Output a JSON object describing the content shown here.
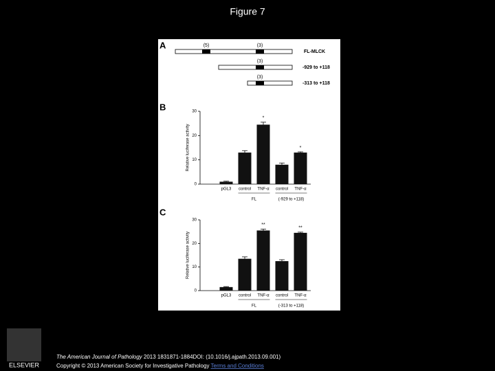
{
  "title": "Figure 7",
  "panel_labels": [
    "A",
    "B",
    "C"
  ],
  "diagram": {
    "constructs": [
      {
        "label": "FL-MLCK",
        "sites": [
          "(5)",
          "(3)"
        ]
      },
      {
        "label": "-929 to +118",
        "sites": [
          "(3)"
        ]
      },
      {
        "label": "-313 to +118",
        "sites": [
          "(3)"
        ]
      }
    ]
  },
  "chart_data": [
    {
      "type": "bar",
      "ylabel": "Relative luciferase activity",
      "categories": [
        "pGL3",
        "control",
        "TNF-α",
        "control",
        "TNF-α"
      ],
      "values": [
        1,
        13,
        24.5,
        8,
        13
      ],
      "errors": [
        0.2,
        0.8,
        1,
        0.7,
        0.3
      ],
      "annotations": [
        null,
        null,
        "*",
        null,
        "*"
      ],
      "group_labels": [
        "FL",
        "(-929 to +118)"
      ],
      "color": "#111111",
      "ylim": [
        0,
        30
      ],
      "yticks": [
        0,
        10,
        20,
        30
      ]
    },
    {
      "type": "bar",
      "ylabel": "Relative luciferase activity",
      "categories": [
        "pGL3",
        "control",
        "TNF-α",
        "control",
        "TNF-α"
      ],
      "values": [
        1.5,
        13.5,
        25.5,
        12.5,
        24.5
      ],
      "errors": [
        0.2,
        0.8,
        0.6,
        0.6,
        0.3
      ],
      "annotations": [
        null,
        null,
        "**",
        null,
        "**"
      ],
      "group_labels": [
        "FL",
        "(-313 to +118)"
      ],
      "color": "#111111",
      "ylim": [
        0,
        30
      ],
      "yticks": [
        0,
        10,
        20,
        30
      ]
    }
  ],
  "footer": {
    "journal": "The American Journal of Pathology",
    "citation": " 2013 1831871-1884DOI: (10.1016/j.ajpath.2013.09.001)",
    "copyright": "Copyright © 2013 American Society for Investigative Pathology",
    "link": "Terms and Conditions",
    "logo": "ELSEVIER"
  }
}
